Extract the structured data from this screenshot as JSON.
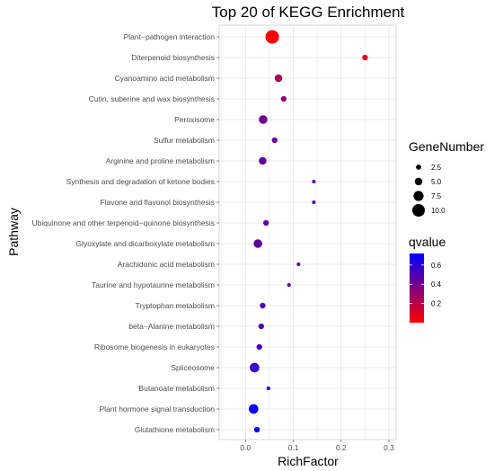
{
  "chart_data": {
    "type": "scatter",
    "title": "Top 20 of KEGG Enrichment",
    "xlabel": "RichFactor",
    "ylabel": "Pathway",
    "xlim": [
      -0.055,
      0.315
    ],
    "xticks": [
      0.0,
      0.1,
      0.2,
      0.3
    ],
    "xtick_labels": [
      "0.0",
      "0.1",
      "0.2",
      "0.3"
    ],
    "grid": true,
    "legend_position": "right",
    "categories": [
      "Plant−pathogen interaction",
      "Diterpenoid biosynthesis",
      "Cyanoamino acid metabolism",
      "Cutin, suberine and wax biosynthesis",
      "Peroxisome",
      "Sulfur metabolism",
      "Arginine and proline metabolism",
      "Synthesis and degradation of ketone bodies",
      "Flavone and flavonol biosynthesis",
      "Ubiquinone and other terpenoid−quinone biosynthesis",
      "Glyoxylate and dicarboxylate metabolism",
      "Arachidonic acid metabolism",
      "Taurine and hypotaurine metabolism",
      "Tryptophan metabolism",
      "beta−Alanine metabolism",
      "Ribosome biogenesis in eukaryotes",
      "Spliceosome",
      "Butanoate metabolism",
      "Plant hormone signal transduction",
      "Glutathione metabolism"
    ],
    "points": [
      {
        "pathway": "Plant−pathogen interaction",
        "rich_factor": 0.056,
        "gene_number": 11,
        "qvalue": 0.0
      },
      {
        "pathway": "Diterpenoid biosynthesis",
        "rich_factor": 0.25,
        "gene_number": 3,
        "qvalue": 0.05
      },
      {
        "pathway": "Cyanoamino acid metabolism",
        "rich_factor": 0.069,
        "gene_number": 5,
        "qvalue": 0.25
      },
      {
        "pathway": "Cutin, suberine and wax biosynthesis",
        "rich_factor": 0.08,
        "gene_number": 3,
        "qvalue": 0.32
      },
      {
        "pathway": "Peroxisome",
        "rich_factor": 0.037,
        "gene_number": 6,
        "qvalue": 0.4
      },
      {
        "pathway": "Sulfur metabolism",
        "rich_factor": 0.061,
        "gene_number": 3,
        "qvalue": 0.42
      },
      {
        "pathway": "Arginine and proline metabolism",
        "rich_factor": 0.036,
        "gene_number": 5,
        "qvalue": 0.45
      },
      {
        "pathway": "Synthesis and degradation of ketone bodies",
        "rich_factor": 0.143,
        "gene_number": 1,
        "qvalue": 0.45
      },
      {
        "pathway": "Flavone and flavonol biosynthesis",
        "rich_factor": 0.143,
        "gene_number": 1,
        "qvalue": 0.45
      },
      {
        "pathway": "Ubiquinone and other terpenoid−quinone biosynthesis",
        "rich_factor": 0.043,
        "gene_number": 3,
        "qvalue": 0.45
      },
      {
        "pathway": "Glyoxylate and dicarboxylate metabolism",
        "rich_factor": 0.026,
        "gene_number": 6,
        "qvalue": 0.45
      },
      {
        "pathway": "Arachidonic acid metabolism",
        "rich_factor": 0.111,
        "gene_number": 1,
        "qvalue": 0.45
      },
      {
        "pathway": "Taurine and hypotaurine metabolism",
        "rich_factor": 0.091,
        "gene_number": 1,
        "qvalue": 0.45
      },
      {
        "pathway": "Tryptophan metabolism",
        "rich_factor": 0.036,
        "gene_number": 3,
        "qvalue": 0.5
      },
      {
        "pathway": "beta−Alanine metabolism",
        "rich_factor": 0.033,
        "gene_number": 3,
        "qvalue": 0.5
      },
      {
        "pathway": "Ribosome biogenesis in eukaryotes",
        "rich_factor": 0.029,
        "gene_number": 3,
        "qvalue": 0.52
      },
      {
        "pathway": "Spliceosome",
        "rich_factor": 0.019,
        "gene_number": 7,
        "qvalue": 0.55
      },
      {
        "pathway": "Butanoate metabolism",
        "rich_factor": 0.048,
        "gene_number": 1,
        "qvalue": 0.62
      },
      {
        "pathway": "Plant hormone signal transduction",
        "rich_factor": 0.017,
        "gene_number": 7,
        "qvalue": 0.68
      },
      {
        "pathway": "Glutathione metabolism",
        "rich_factor": 0.024,
        "gene_number": 3,
        "qvalue": 0.7
      }
    ],
    "size_legend": {
      "title": "GeneNumber",
      "values": [
        2.5,
        5.0,
        7.5,
        10.0
      ],
      "labels": [
        "2.5",
        "5.0",
        "7.5",
        "10.0"
      ]
    },
    "color_legend": {
      "title": "qvalue",
      "min": 0.0,
      "max": 0.72,
      "ticks": [
        0.2,
        0.4,
        0.6
      ],
      "tick_labels": [
        "0.2",
        "0.4",
        "0.6"
      ],
      "low_color": "#ff0000",
      "high_color": "#0000ff"
    }
  }
}
